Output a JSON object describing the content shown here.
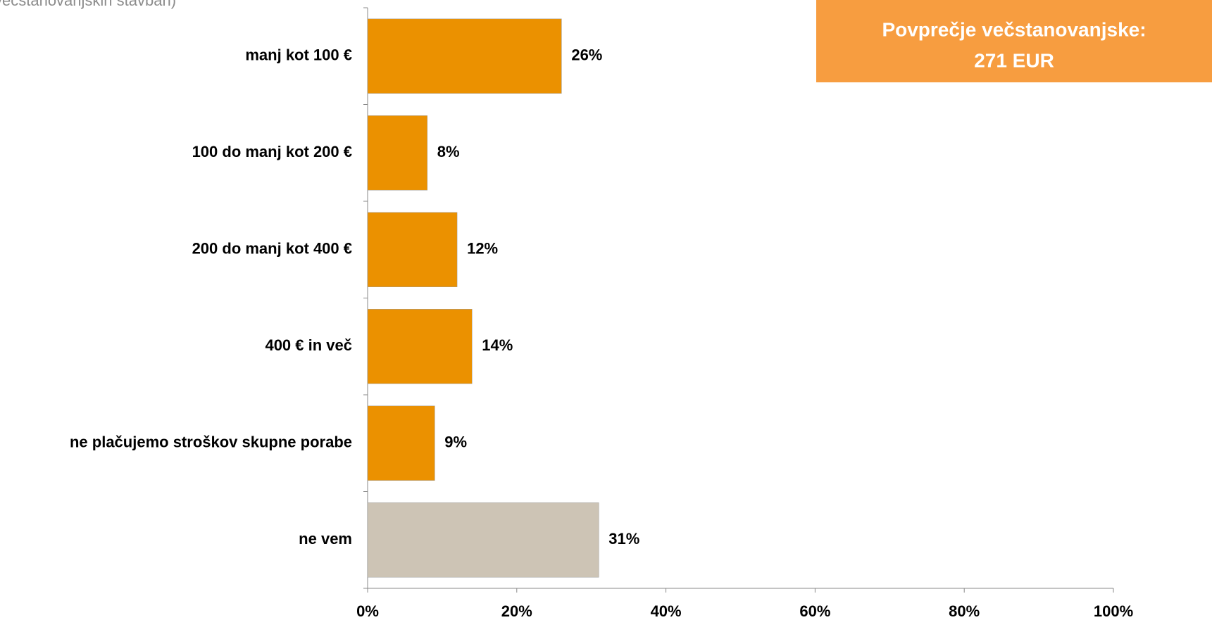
{
  "chart_data": {
    "type": "bar",
    "orientation": "horizontal",
    "subtitle": "večstanovanjskih stavbah)",
    "annotation": [
      "Povprečje večstanovanjske:",
      "271 EUR"
    ],
    "annotation_color": "#f79d40",
    "categories": [
      "manj kot 100 €",
      "100 do manj kot 200 €",
      "200 do manj kot 400 €",
      "400 € in več",
      "ne plačujemo stroškov skupne porabe",
      "ne vem"
    ],
    "values": [
      26,
      8,
      12,
      14,
      9,
      31
    ],
    "value_labels": [
      "26%",
      "8%",
      "12%",
      "14%",
      "9%",
      "31%"
    ],
    "colors": [
      "#eb9100",
      "#eb9100",
      "#eb9100",
      "#eb9100",
      "#eb9100",
      "#cdc4b5"
    ],
    "xlim": [
      0,
      100
    ],
    "xticks": [
      {
        "value": 0,
        "label": "0%"
      },
      {
        "value": 20,
        "label": "20%"
      },
      {
        "value": 40,
        "label": "40%"
      },
      {
        "value": 60,
        "label": "60%"
      },
      {
        "value": 80,
        "label": "80%"
      },
      {
        "value": 100,
        "label": "100%"
      }
    ],
    "grid": false
  }
}
